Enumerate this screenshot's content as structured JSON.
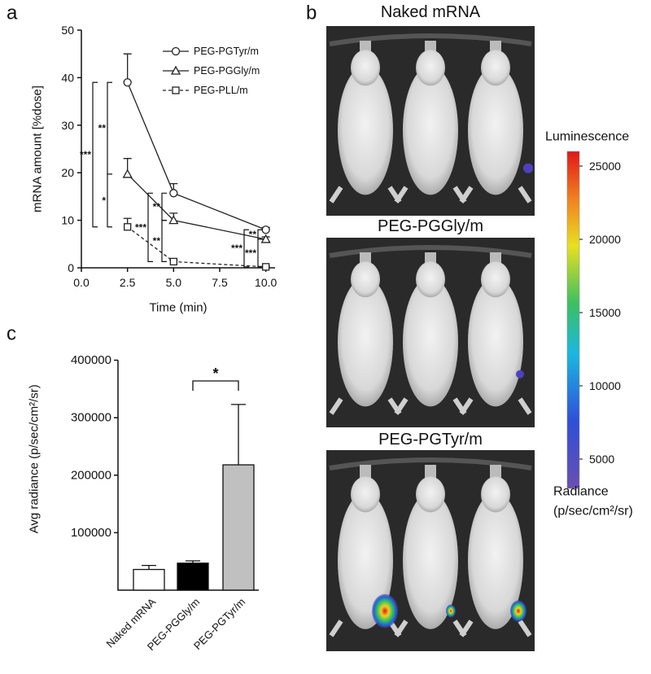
{
  "panel_labels": [
    "a",
    "b",
    "c"
  ],
  "chart_data": [
    {
      "type": "line",
      "xlabel": "Time (min)",
      "ylabel": "mRNA amount [%dose]",
      "x": [
        2.5,
        5,
        10
      ],
      "xlim": [
        0,
        10.5
      ],
      "xticks": [
        {
          "value": 0,
          "label": "0.0"
        },
        2.5,
        {
          "value": 5,
          "label": "5.0"
        },
        7.5,
        {
          "value": 10,
          "label": "10.0"
        }
      ],
      "ylim": [
        0,
        50
      ],
      "yticks": [
        0,
        10,
        20,
        30,
        40,
        50
      ],
      "series": [
        {
          "name": "PEG-PGTyr/m",
          "color": "#222222",
          "marker": "circle",
          "dash": false,
          "values": [
            39,
            15.7,
            8
          ],
          "errors": [
            6,
            2,
            0.5
          ]
        },
        {
          "name": "PEG-PGGly/m",
          "color": "#222222",
          "marker": "triangle",
          "dash": false,
          "values": [
            19.7,
            10,
            6
          ],
          "errors": [
            3.3,
            1.5,
            0.5
          ]
        },
        {
          "name": "PEG-PLL/m",
          "color": "#222222",
          "marker": "square",
          "dash": true,
          "values": [
            8.6,
            1.3,
            0.2
          ],
          "errors": [
            1.8,
            0.3,
            0.2
          ]
        }
      ],
      "annotations": [
        "**",
        "*",
        "***",
        "**",
        "**",
        "***",
        "**",
        "***",
        "***"
      ]
    },
    {
      "type": "bar",
      "ylabel": "Avg radiance (p/sec/cm²/sr)",
      "categories": [
        "Naked mRNA",
        "PEG-PGGly/m",
        "PEG-PGTyr/m"
      ],
      "values": [
        36000,
        47000,
        218000
      ],
      "errors": [
        7000,
        4000,
        105000
      ],
      "colors": [
        "#ffffff",
        "#000000",
        "#c0c0c0"
      ],
      "ylim": [
        0,
        400000
      ],
      "yticks": [
        100000,
        200000,
        300000,
        400000
      ],
      "annotations": [
        "*"
      ]
    }
  ],
  "images": {
    "titles": [
      "Naked mRNA",
      "PEG-PGGly/m",
      "PEG-PGTyr/m"
    ]
  },
  "colorbar": {
    "title": "Luminescence",
    "lim": [
      3000,
      26000
    ],
    "ticks": [
      5000,
      10000,
      15000,
      20000,
      25000
    ],
    "label_lines": [
      "Radiance",
      "(p/sec/cm²/sr)"
    ]
  }
}
